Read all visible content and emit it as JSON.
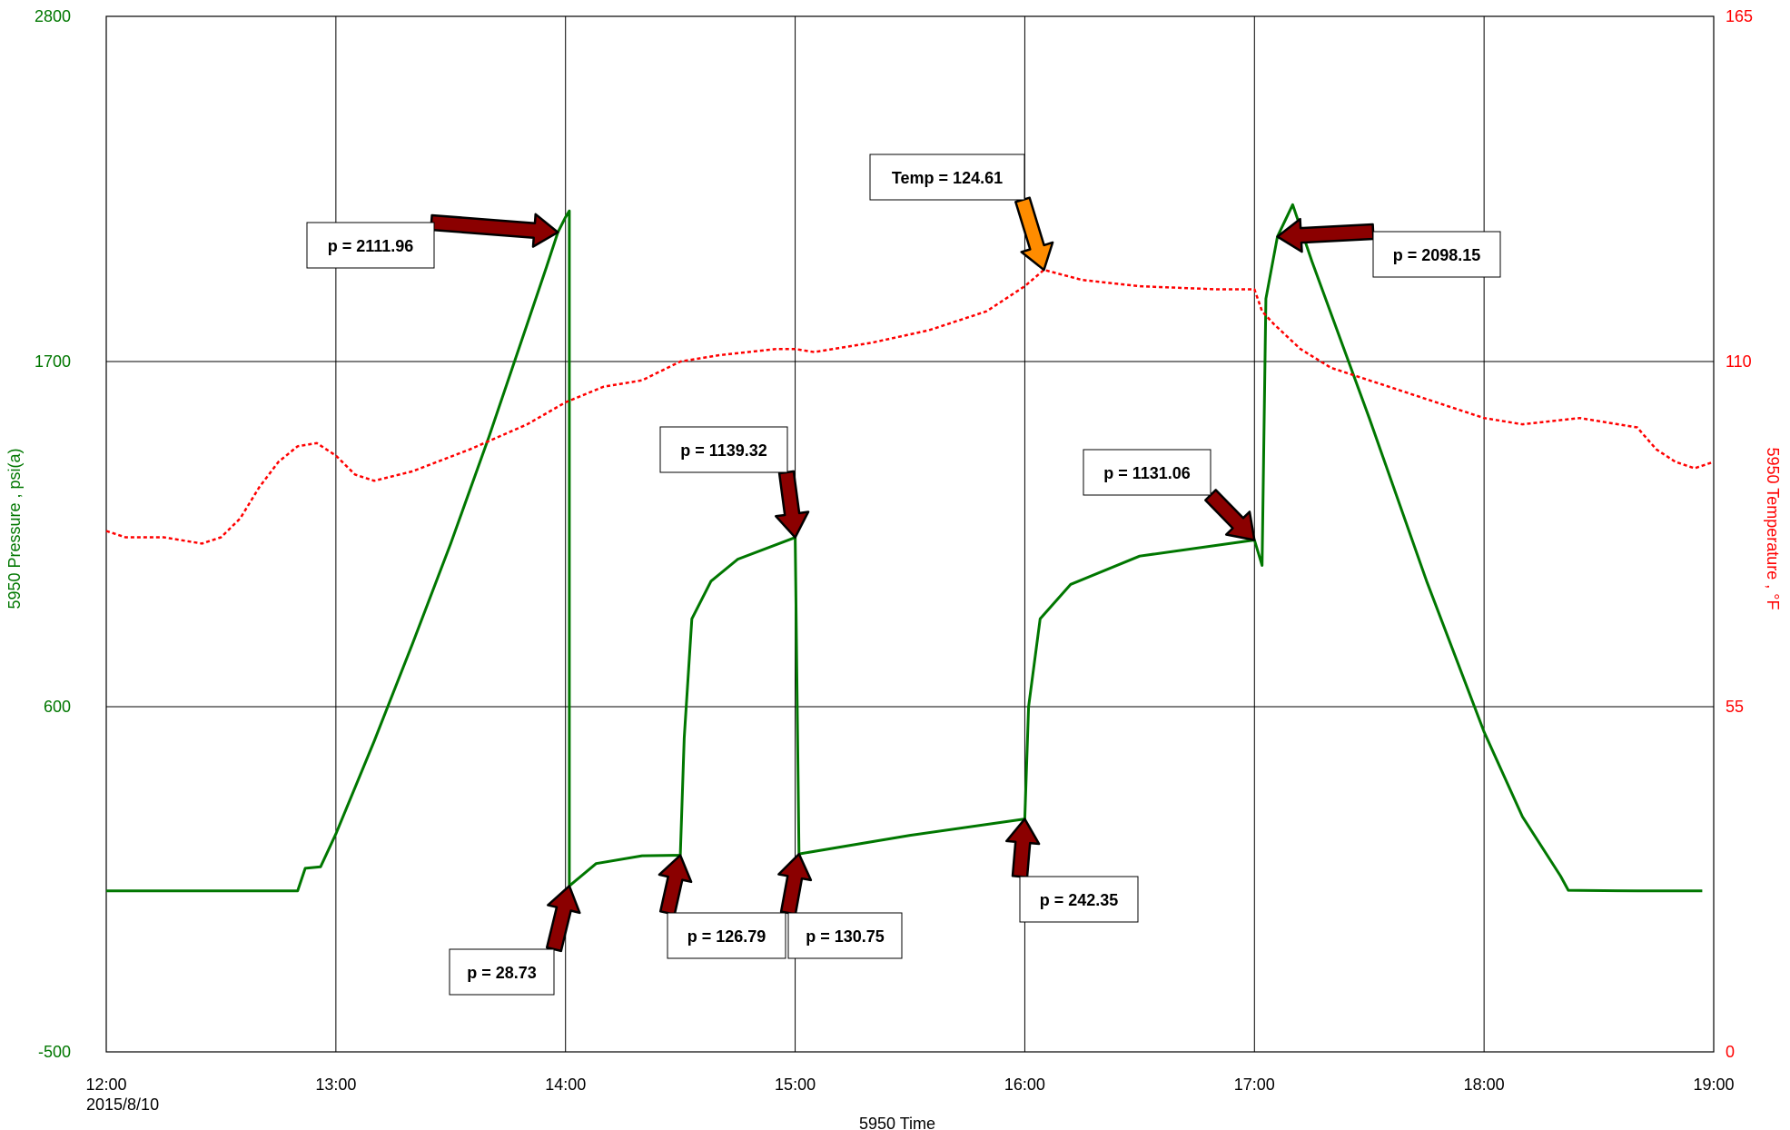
{
  "chart_data": {
    "type": "line",
    "title": "",
    "date_label": "2015/8/10",
    "xlabel": "5950 Time",
    "ylabel_left": "5950 Pressure , psi(a)",
    "ylabel_right": "5950 Temperature , °F",
    "x_ticks": [
      "12:00",
      "13:00",
      "14:00",
      "15:00",
      "16:00",
      "17:00",
      "18:00",
      "19:00"
    ],
    "x_range": [
      "12:00",
      "19:00"
    ],
    "y_left_ticks": [
      2800,
      1700,
      600,
      -500
    ],
    "y_left_range": [
      -500,
      2800
    ],
    "y_right_ticks": [
      165,
      110,
      55,
      0
    ],
    "y_right_range": [
      0,
      165
    ],
    "grid": true,
    "colors": {
      "pressure": "#007700",
      "temperature": "#ff0000",
      "arrow": "#8b0000",
      "arrow_temp": "#ff8c00"
    },
    "series": [
      {
        "name": "5950 Pressure , psi(a)",
        "axis": "left",
        "points": [
          [
            "12:00",
            13
          ],
          [
            "12:45",
            13
          ],
          [
            "12:50",
            13
          ],
          [
            "12:52",
            85
          ],
          [
            "12:56",
            90
          ],
          [
            "13:00",
            195
          ],
          [
            "13:10",
            490
          ],
          [
            "13:20",
            800
          ],
          [
            "13:30",
            1120
          ],
          [
            "13:40",
            1460
          ],
          [
            "13:50",
            1820
          ],
          [
            "13:55",
            2000
          ],
          [
            "13:58",
            2111.96
          ],
          [
            "14:00",
            2160
          ],
          [
            "14:01",
            2180
          ],
          [
            "14:01",
            28.73
          ],
          [
            "14:08",
            100
          ],
          [
            "14:20",
            125
          ],
          [
            "14:30",
            126.79
          ],
          [
            "14:31",
            500
          ],
          [
            "14:33",
            880
          ],
          [
            "14:38",
            1000
          ],
          [
            "14:45",
            1070
          ],
          [
            "15:00",
            1139.32
          ],
          [
            "15:01",
            130.75
          ],
          [
            "15:30",
            190
          ],
          [
            "16:00",
            242.35
          ],
          [
            "16:01",
            600
          ],
          [
            "16:04",
            880
          ],
          [
            "16:12",
            990
          ],
          [
            "16:30",
            1080
          ],
          [
            "17:00",
            1131.06
          ],
          [
            "17:02",
            1050
          ],
          [
            "17:03",
            1900
          ],
          [
            "17:06",
            2098.15
          ],
          [
            "17:10",
            2200
          ],
          [
            "17:15",
            2020
          ],
          [
            "17:30",
            1520
          ],
          [
            "17:45",
            1000
          ],
          [
            "18:00",
            520
          ],
          [
            "18:10",
            250
          ],
          [
            "18:20",
            60
          ],
          [
            "18:22",
            15
          ],
          [
            "18:40",
            13
          ],
          [
            "18:57",
            13
          ]
        ]
      },
      {
        "name": "5950 Temperature , °F",
        "axis": "right",
        "points": [
          [
            "12:00",
            83
          ],
          [
            "12:05",
            82
          ],
          [
            "12:15",
            82
          ],
          [
            "12:25",
            81
          ],
          [
            "12:30",
            82
          ],
          [
            "12:35",
            85
          ],
          [
            "12:40",
            90
          ],
          [
            "12:45",
            94
          ],
          [
            "12:50",
            96.5
          ],
          [
            "12:55",
            97
          ],
          [
            "13:00",
            95
          ],
          [
            "13:05",
            92
          ],
          [
            "13:10",
            91
          ],
          [
            "13:20",
            92.5
          ],
          [
            "13:35",
            96
          ],
          [
            "13:50",
            100
          ],
          [
            "14:00",
            103.5
          ],
          [
            "14:10",
            106
          ],
          [
            "14:15",
            106.5
          ],
          [
            "14:20",
            107
          ],
          [
            "14:30",
            110
          ],
          [
            "14:40",
            111
          ],
          [
            "14:55",
            112
          ],
          [
            "15:00",
            112
          ],
          [
            "15:05",
            111.5
          ],
          [
            "15:20",
            113
          ],
          [
            "15:35",
            115
          ],
          [
            "15:50",
            118
          ],
          [
            "16:00",
            122
          ],
          [
            "16:05",
            124.61
          ],
          [
            "16:15",
            123
          ],
          [
            "16:30",
            122
          ],
          [
            "16:50",
            121.5
          ],
          [
            "17:00",
            121.5
          ],
          [
            "17:02",
            118
          ],
          [
            "17:05",
            116
          ],
          [
            "17:12",
            112
          ],
          [
            "17:20",
            109
          ],
          [
            "17:35",
            106
          ],
          [
            "17:50",
            103
          ],
          [
            "18:00",
            101
          ],
          [
            "18:10",
            100
          ],
          [
            "18:25",
            101
          ],
          [
            "18:40",
            99.5
          ],
          [
            "18:45",
            96
          ],
          [
            "18:50",
            94
          ],
          [
            "18:55",
            93
          ],
          [
            "19:00",
            94
          ]
        ]
      }
    ],
    "annotations": [
      {
        "label": "p = 2111.96",
        "time": "13:58",
        "value": 2111.96,
        "axis": "left"
      },
      {
        "label": "Temp = 124.61",
        "time": "16:05",
        "value": 124.61,
        "axis": "right"
      },
      {
        "label": "p = 2098.15",
        "time": "17:06",
        "value": 2098.15,
        "axis": "left"
      },
      {
        "label": "p = 1139.32",
        "time": "15:00",
        "value": 1139.32,
        "axis": "left"
      },
      {
        "label": "p = 1131.06",
        "time": "17:00",
        "value": 1131.06,
        "axis": "left"
      },
      {
        "label": "p = 28.73",
        "time": "14:01",
        "value": 28.73,
        "axis": "left"
      },
      {
        "label": "p = 126.79",
        "time": "14:30",
        "value": 126.79,
        "axis": "left"
      },
      {
        "label": "p = 130.75",
        "time": "15:01",
        "value": 130.75,
        "axis": "left"
      },
      {
        "label": "p = 242.35",
        "time": "16:00",
        "value": 242.35,
        "axis": "left"
      }
    ]
  }
}
